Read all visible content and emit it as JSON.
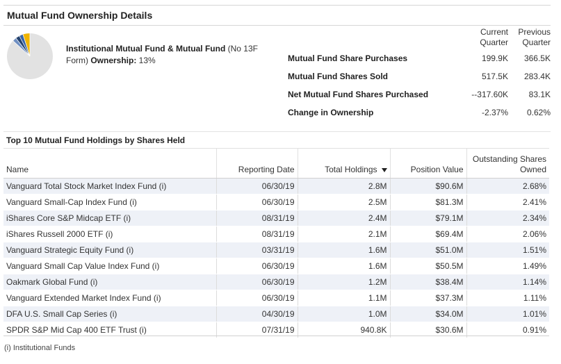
{
  "header": {
    "title": "Mutual Fund Ownership Details"
  },
  "ownership": {
    "label_bold": "Institutional Mutual Fund & Mutual Fund",
    "label_normal": " (No 13F Form)",
    "label_suffix": " Ownership:",
    "value": " 13%",
    "pie_percent": 13,
    "colors": {
      "base": "#e2e2e2",
      "gold": "#f0b400",
      "blue": "#3a66a8",
      "dark": "#24426e"
    }
  },
  "summary": {
    "col_current": "Current Quarter",
    "col_previous": "Previous Quarter",
    "rows": [
      {
        "label": "Mutual Fund Share Purchases",
        "current": "199.9K",
        "previous": "366.5K"
      },
      {
        "label": "Mutual Fund Shares Sold",
        "current": "517.5K",
        "previous": "283.4K"
      },
      {
        "label": "Net Mutual Fund Shares Purchased",
        "current": "--317.60K",
        "previous": "83.1K"
      },
      {
        "label": "Change in Ownership",
        "current": "-2.37%",
        "previous": "0.62%"
      }
    ]
  },
  "top10": {
    "title": "Top 10 Mutual Fund Holdings by Shares Held",
    "columns": {
      "name": "Name",
      "date": "Reporting Date",
      "holdings": "Total Holdings",
      "value": "Position Value",
      "outstanding": "Outstanding Shares Owned"
    },
    "rows": [
      {
        "name": "Vanguard Total Stock Market Index Fund (i)",
        "date": "06/30/19",
        "holdings": "2.8M",
        "value": "$90.6M",
        "outstanding": "2.68%"
      },
      {
        "name": "Vanguard Small-Cap Index Fund (i)",
        "date": "06/30/19",
        "holdings": "2.5M",
        "value": "$81.3M",
        "outstanding": "2.41%"
      },
      {
        "name": "iShares Core S&P Midcap ETF (i)",
        "date": "08/31/19",
        "holdings": "2.4M",
        "value": "$79.1M",
        "outstanding": "2.34%"
      },
      {
        "name": "iShares Russell 2000 ETF (i)",
        "date": "08/31/19",
        "holdings": "2.1M",
        "value": "$69.4M",
        "outstanding": "2.06%"
      },
      {
        "name": "Vanguard Strategic Equity Fund (i)",
        "date": "03/31/19",
        "holdings": "1.6M",
        "value": "$51.0M",
        "outstanding": "1.51%"
      },
      {
        "name": "Vanguard Small Cap Value Index Fund (i)",
        "date": "06/30/19",
        "holdings": "1.6M",
        "value": "$50.5M",
        "outstanding": "1.49%"
      },
      {
        "name": "Oakmark Global Fund (i)",
        "date": "06/30/19",
        "holdings": "1.2M",
        "value": "$38.4M",
        "outstanding": "1.14%"
      },
      {
        "name": "Vanguard Extended Market Index Fund (i)",
        "date": "06/30/19",
        "holdings": "1.1M",
        "value": "$37.3M",
        "outstanding": "1.11%"
      },
      {
        "name": "DFA U.S. Small Cap Series (i)",
        "date": "04/30/19",
        "holdings": "1.0M",
        "value": "$34.0M",
        "outstanding": "1.01%"
      },
      {
        "name": "SPDR S&P Mid Cap 400 ETF Trust (i)",
        "date": "07/31/19",
        "holdings": "940.8K",
        "value": "$30.6M",
        "outstanding": "0.91%"
      }
    ]
  },
  "footnote": "(i) Institutional Funds"
}
